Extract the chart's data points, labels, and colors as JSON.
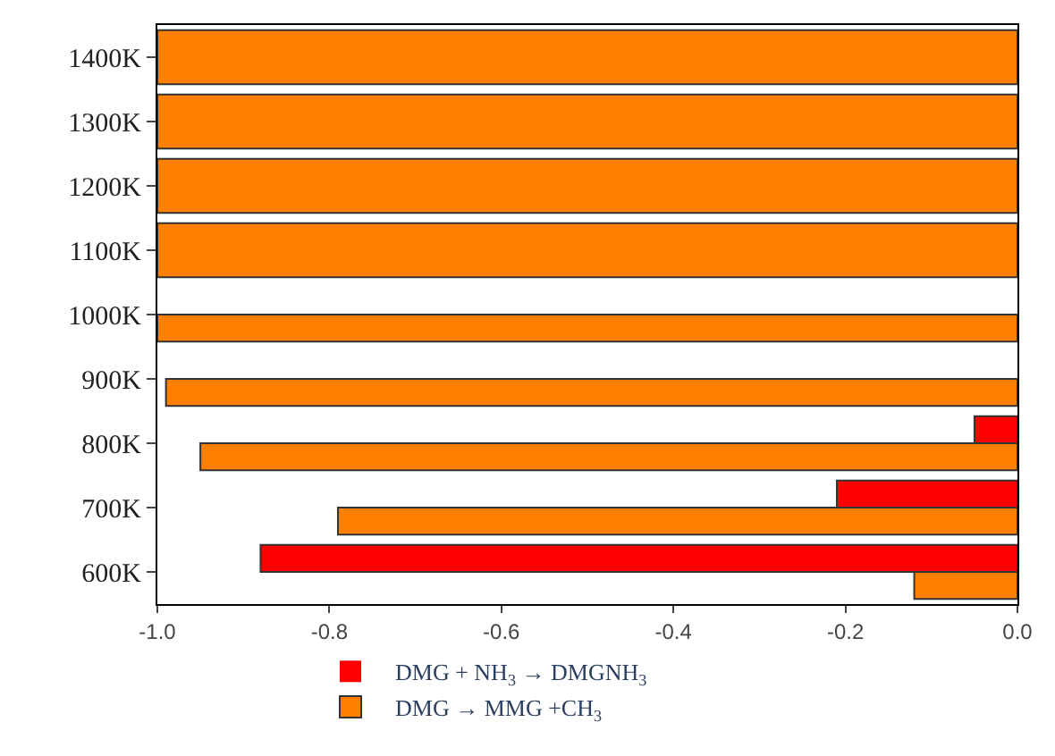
{
  "chart_data": {
    "type": "bar",
    "orientation": "horizontal",
    "categories": [
      "1400K",
      "1300K",
      "1200K",
      "1100K",
      "1000K",
      "900K",
      "800K",
      "700K",
      "600K"
    ],
    "series": [
      {
        "name": "DMG + NH$_{3}$ → DMGNH$_{3}$",
        "color": "#ff0000",
        "values": [
          null,
          null,
          null,
          null,
          0,
          0,
          -0.05,
          -0.21,
          -0.88
        ]
      },
      {
        "name": "DMG → MMG +CH$_{3}$",
        "color": "#ff8000",
        "values": [
          -1.0,
          -1.0,
          -1.0,
          -1.0,
          -1.0,
          -0.99,
          -0.95,
          -0.79,
          -0.12
        ]
      }
    ],
    "xlim": [
      -1.0,
      0.0
    ],
    "xticks": [
      {
        "value": -1.0,
        "label": "-1.0"
      },
      {
        "value": -0.8,
        "label": "-0.8"
      },
      {
        "value": -0.6,
        "label": "-0.6"
      },
      {
        "value": -0.4,
        "label": "-0.4"
      },
      {
        "value": -0.2,
        "label": "-0.2"
      },
      {
        "value": 0.0,
        "label": "0.0"
      }
    ],
    "grid": false,
    "legend": "bottom"
  }
}
